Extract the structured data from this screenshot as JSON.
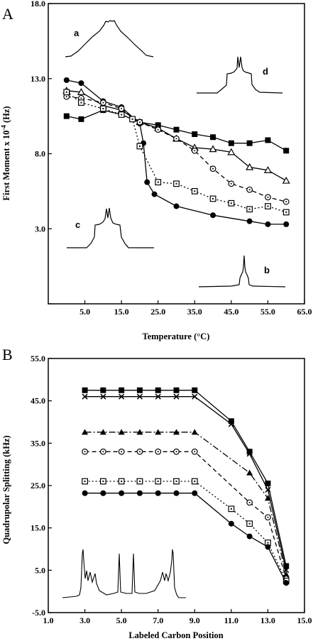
{
  "figure": {
    "panels": [
      "A",
      "B"
    ]
  },
  "chart_data": [
    {
      "panel": "A",
      "type": "line",
      "xlabel": "Temperature (°C)",
      "ylabel": "First Moment x 10^-4 (Hz)",
      "xlim": [
        -5,
        65
      ],
      "ylim": [
        -2,
        18
      ],
      "xticks": [
        5,
        15,
        25,
        35,
        45,
        55,
        65
      ],
      "xtick_labels": [
        "5.0",
        "15.0",
        "25.0",
        "35.0",
        "45.0",
        "55.0",
        "65.0"
      ],
      "yticks": [
        -2,
        3,
        8,
        13,
        18
      ],
      "ytick_labels": [
        "",
        "3.0",
        "8.0",
        "13.0",
        "18.0"
      ],
      "series": [
        {
          "marker": "filled-circle",
          "line": "solid",
          "x": [
            0,
            4,
            10,
            15,
            20,
            21,
            22,
            24,
            30,
            40,
            50,
            55,
            60
          ],
          "y": [
            12.9,
            12.7,
            11.5,
            11.1,
            10,
            8.7,
            6.1,
            5.3,
            4.5,
            3.9,
            3.5,
            3.3,
            3.3
          ]
        },
        {
          "marker": "filled-square",
          "line": "solid",
          "x": [
            0,
            4,
            10,
            15,
            20,
            25,
            30,
            35,
            40,
            45,
            50,
            55,
            60
          ],
          "y": [
            10.5,
            10.3,
            10.9,
            10.6,
            10.1,
            9.9,
            9.6,
            9.3,
            9.1,
            8.7,
            8.7,
            8.9,
            8.2
          ]
        },
        {
          "marker": "open-triangle",
          "line": "solid",
          "x": [
            0,
            4,
            10,
            15,
            20,
            25,
            30,
            35,
            40,
            45,
            50,
            55,
            60
          ],
          "y": [
            12.2,
            12.1,
            11.2,
            10.9,
            10.1,
            9.7,
            9.0,
            8.4,
            8.3,
            8.1,
            7.1,
            6.9,
            6.2
          ]
        },
        {
          "marker": "open-circle-dot",
          "line": "dashed",
          "x": [
            0,
            4,
            10,
            15,
            20,
            25,
            30,
            35,
            40,
            45,
            50,
            55,
            60
          ],
          "y": [
            11.8,
            11.7,
            11.4,
            11.0,
            10.1,
            9.6,
            9.0,
            8.2,
            7.0,
            6.0,
            5.6,
            5.1,
            4.8
          ]
        },
        {
          "marker": "open-square-dot",
          "line": "dotted",
          "x": [
            0,
            4,
            10,
            15,
            18,
            20,
            25,
            30,
            35,
            40,
            45,
            50,
            55,
            60
          ],
          "y": [
            12.1,
            11.4,
            11.0,
            10.6,
            10.3,
            8.5,
            6.1,
            6.0,
            5.5,
            5.0,
            4.7,
            4.3,
            4.5,
            4.1
          ]
        }
      ],
      "spectra_labels": [
        "a",
        "d",
        "c",
        "b"
      ]
    },
    {
      "panel": "B",
      "type": "line",
      "xlabel": "Labeled Carbon Position",
      "ylabel": "Quadrupolar Splitting (kHz)",
      "xlim": [
        1,
        15
      ],
      "ylim": [
        -5,
        55
      ],
      "xticks": [
        1,
        3,
        5,
        7,
        9,
        11,
        13,
        15
      ],
      "xtick_labels": [
        "1.0",
        "3.0",
        "5.0",
        "7.0",
        "9.0",
        "11.0",
        "13.0",
        "15.0"
      ],
      "yticks": [
        -5,
        5,
        15,
        25,
        35,
        45,
        55
      ],
      "ytick_labels": [
        "-5.0",
        "5.0",
        "15.0",
        "25.0",
        "35.0",
        "45.0",
        "55.0"
      ],
      "series": [
        {
          "marker": "filled-square",
          "line": "solid",
          "x": [
            3,
            4,
            5,
            6,
            7,
            8,
            9,
            11,
            12,
            13,
            14
          ],
          "y": [
            47.5,
            47.5,
            47.5,
            47.5,
            47.5,
            47.5,
            47.5,
            40.2,
            33.0,
            25.5,
            6.0
          ]
        },
        {
          "marker": "x",
          "line": "solid",
          "x": [
            3,
            4,
            5,
            6,
            7,
            8,
            9,
            11,
            12,
            13,
            14
          ],
          "y": [
            46.0,
            46.0,
            46.0,
            46.0,
            46.0,
            46.0,
            46.0,
            39.5,
            32.5,
            24.0,
            5.0
          ]
        },
        {
          "marker": "filled-triangle",
          "line": "dashdot",
          "x": [
            3,
            4,
            5,
            6,
            7,
            8,
            9,
            12,
            13,
            14
          ],
          "y": [
            37.6,
            37.6,
            37.6,
            37.6,
            37.6,
            37.6,
            37.6,
            28.0,
            22.0,
            4.0
          ]
        },
        {
          "marker": "open-circle-dot",
          "line": "dashed",
          "x": [
            3,
            4,
            5,
            6,
            7,
            8,
            9,
            12,
            13,
            14
          ],
          "y": [
            33.0,
            33.0,
            33.0,
            33.0,
            33.0,
            33.0,
            33.0,
            21.0,
            17.5,
            3.0
          ]
        },
        {
          "marker": "open-square-dot",
          "line": "dotted",
          "x": [
            3,
            4,
            5,
            6,
            7,
            8,
            9,
            11,
            12,
            13,
            14
          ],
          "y": [
            26.0,
            26.0,
            26.0,
            26.0,
            26.0,
            26.0,
            26.0,
            19.5,
            16.0,
            11.5,
            2.5
          ]
        },
        {
          "marker": "filled-circle",
          "line": "solid",
          "x": [
            3,
            4,
            5,
            6,
            7,
            8,
            9,
            11,
            12,
            13,
            14
          ],
          "y": [
            23.2,
            23.2,
            23.2,
            23.2,
            23.2,
            23.2,
            23.2,
            16.0,
            13.0,
            10.5,
            2.0
          ]
        }
      ]
    }
  ]
}
